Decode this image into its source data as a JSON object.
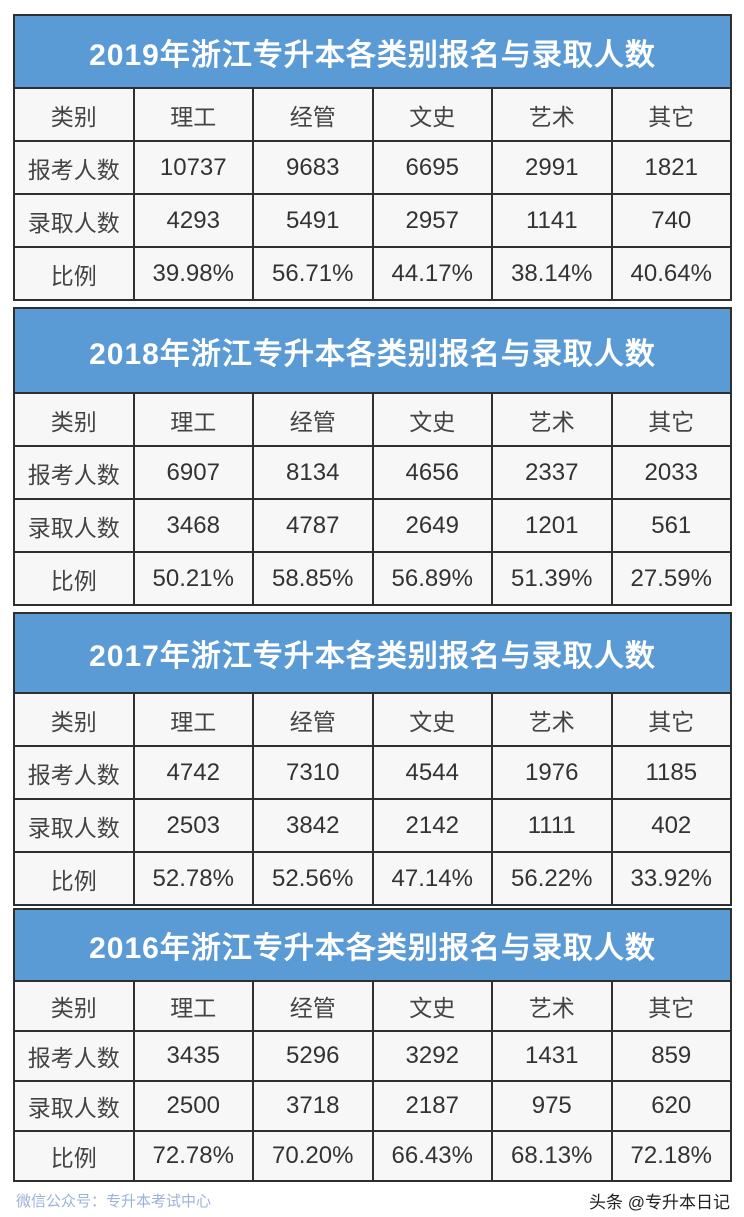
{
  "columns": [
    "类别",
    "理工",
    "经管",
    "文史",
    "艺术",
    "其它"
  ],
  "row_labels": [
    "报考人数",
    "录取人数",
    "比例"
  ],
  "tables": [
    {
      "title": "2019年浙江专升本各类别报名与录取人数",
      "rows": [
        [
          "10737",
          "9683",
          "6695",
          "2991",
          "1821"
        ],
        [
          "4293",
          "5491",
          "2957",
          "1141",
          "740"
        ],
        [
          "39.98%",
          "56.71%",
          "44.17%",
          "38.14%",
          "40.64%"
        ]
      ]
    },
    {
      "title": "2018年浙江专升本各类别报名与录取人数",
      "rows": [
        [
          "6907",
          "8134",
          "4656",
          "2337",
          "2033"
        ],
        [
          "3468",
          "4787",
          "2649",
          "1201",
          "561"
        ],
        [
          "50.21%",
          "58.85%",
          "56.89%",
          "51.39%",
          "27.59%"
        ]
      ]
    },
    {
      "title": "2017年浙江专升本各类别报名与录取人数",
      "rows": [
        [
          "4742",
          "7310",
          "4544",
          "1976",
          "1185"
        ],
        [
          "2503",
          "3842",
          "2142",
          "1111",
          "402"
        ],
        [
          "52.78%",
          "52.56%",
          "47.14%",
          "56.22%",
          "33.92%"
        ]
      ]
    },
    {
      "title": "2016年浙江专升本各类别报名与录取人数",
      "rows": [
        [
          "3435",
          "5296",
          "3292",
          "1431",
          "859"
        ],
        [
          "2500",
          "3718",
          "2187",
          "975",
          "620"
        ],
        [
          "72.78%",
          "70.20%",
          "66.43%",
          "68.13%",
          "72.18%"
        ]
      ]
    }
  ],
  "watermark": "微信公众号：专升本考试中心",
  "credit": "头条 @专升本日记",
  "colors": {
    "header_bg": "#5b9bd5",
    "border": "#2f2f2f",
    "cell_bg": "#f7f7f7"
  }
}
